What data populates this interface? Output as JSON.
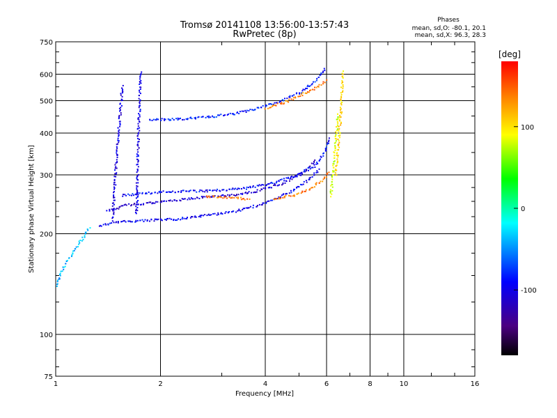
{
  "chart_data": {
    "type": "scatter",
    "title": "Tromsø 20141108 13:56:00-13:57:43",
    "subtitle": "RwPretec (8p)",
    "xlabel": "Frequency [MHz]",
    "ylabel": "Stationary phase Virtual Height [km]",
    "x_scale": "log",
    "y_scale": "log",
    "xlim": [
      1,
      16
    ],
    "ylim": [
      75,
      750
    ],
    "grid": true,
    "x_ticks": [
      1,
      2,
      4,
      6,
      8,
      10,
      16
    ],
    "x_tick_labels": [
      "1",
      "2",
      "4",
      "6",
      "8",
      "10",
      "16"
    ],
    "y_ticks": [
      75,
      100,
      200,
      300,
      400,
      500,
      600,
      750
    ],
    "y_tick_labels": [
      "75",
      "100",
      "200",
      "300",
      "400",
      "500",
      "600",
      "750"
    ],
    "phase_info": {
      "heading": "Phases",
      "line1": "mean, sd,O: -80.1, 20.1",
      "line2": "mean, sd,X: 96.3, 28.3"
    },
    "colorbar": {
      "label": "[deg]",
      "range": [
        -180,
        180
      ],
      "ticks": [
        100,
        0,
        -100
      ],
      "tick_labels": [
        "100",
        "0",
        "-100"
      ],
      "colors": [
        "#000000",
        "#4b0082",
        "#0000ff",
        "#00ffff",
        "#00ff00",
        "#ffff00",
        "#ff8000",
        "#ff0000"
      ]
    },
    "series": [
      {
        "traces": [
          {
            "x": [
              1.33,
              1.5,
              1.8,
              2.2,
              2.7,
              3.3,
              4.0,
              4.7,
              5.3,
              5.7
            ],
            "y": [
              212,
              218,
              220,
              222,
              228,
              235,
              248,
              268,
              290,
              315
            ],
            "phase": -95
          },
          {
            "x": [
              1.4,
              1.6,
              2.0,
              2.6,
              3.2,
              3.8,
              4.5,
              5.1,
              5.6
            ],
            "y": [
              235,
              245,
              250,
              258,
              262,
              270,
              285,
              305,
              335
            ],
            "phase": -110
          },
          {
            "x": [
              1.55,
              2.0,
              2.8,
              3.5,
              4.2,
              4.9,
              5.5,
              5.9,
              6.1
            ],
            "y": [
              262,
              268,
              270,
              275,
              285,
              300,
              320,
              350,
              390
            ],
            "phase": -90
          },
          {
            "x": [
              1.85,
              2.2,
              2.7,
              3.3,
              3.9,
              4.4,
              5.0,
              5.5,
              5.95
            ],
            "y": [
              440,
              442,
              448,
              460,
              480,
              500,
              530,
              570,
              630
            ],
            "phase": -85
          },
          {
            "x": [
              4.0,
              4.5,
              5.0,
              5.5,
              6.0
            ],
            "y": [
              478,
              495,
              520,
              545,
              580
            ],
            "phase": 140
          },
          {
            "x": [
              2.7,
              3.1,
              3.6
            ],
            "y": [
              260,
              258,
              255
            ],
            "phase": 140
          },
          {
            "x": [
              4.2,
              4.8,
              5.3,
              5.8,
              6.1
            ],
            "y": [
              255,
              262,
              272,
              290,
              310
            ],
            "phase": 140
          },
          {
            "x": [
              6.35,
              6.5,
              6.6,
              6.65
            ],
            "y": [
              300,
              400,
              500,
              620
            ],
            "phase": 105
          },
          {
            "x": [
              6.15,
              6.3,
              6.45
            ],
            "y": [
              260,
              350,
              460
            ],
            "phase": 80
          },
          {
            "x": [
              1.7,
              1.72,
              1.75
            ],
            "y": [
              230,
              400,
              620
            ],
            "phase": -100
          },
          {
            "x": [
              1.45,
              1.5,
              1.55
            ],
            "y": [
              220,
              380,
              560
            ],
            "phase": -105
          },
          {
            "x": [
              1.0,
              1.05,
              1.15,
              1.25
            ],
            "y": [
              140,
              160,
              185,
              210
            ],
            "phase": -40
          }
        ]
      }
    ]
  }
}
